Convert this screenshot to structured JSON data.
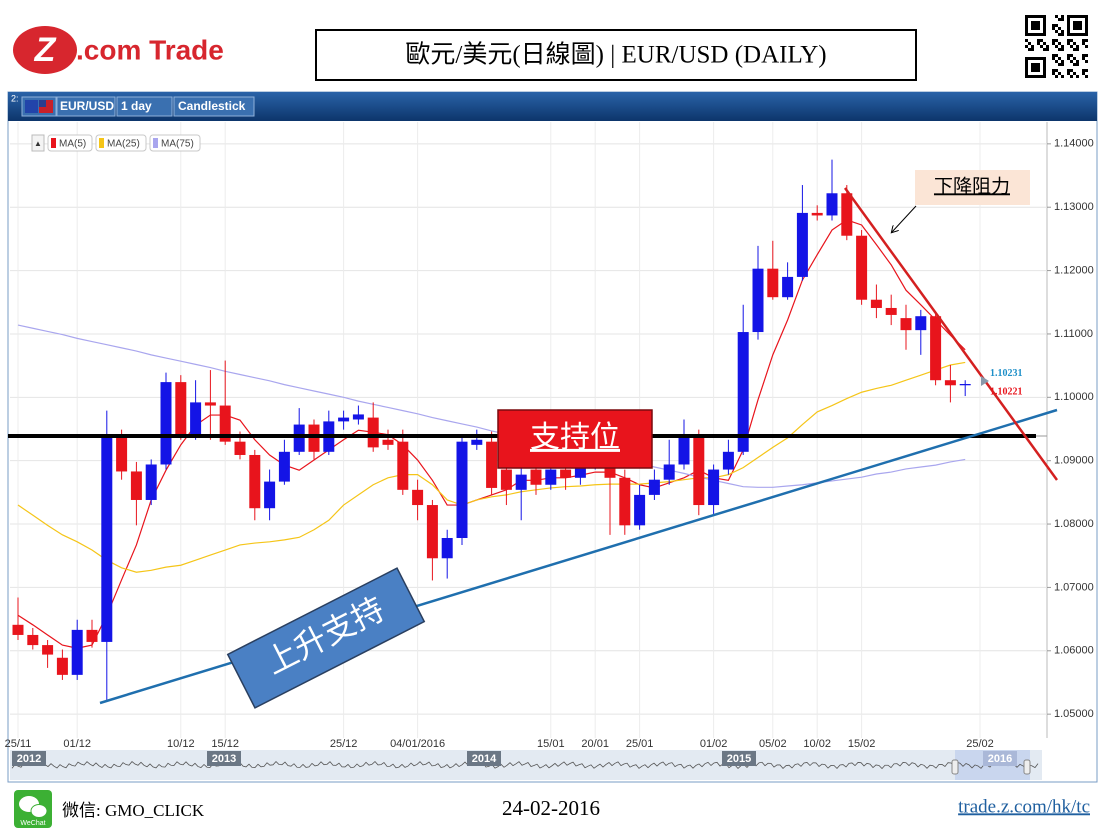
{
  "header": {
    "logo_mark": "Z",
    "logo_text": ".com Trade",
    "title": "歐元/美元(日線圖) | EUR/USD (DAILY)"
  },
  "toolbar": {
    "panel": "2:",
    "symbol": "EUR/USD",
    "interval": "1 day",
    "chart_style": "Candlestick",
    "legend_toggle": "▲"
  },
  "chart_data": {
    "type": "candlestick",
    "categories": [
      "25/11",
      null,
      null,
      null,
      "01/12",
      null,
      null,
      null,
      null,
      null,
      null,
      "10/12",
      null,
      null,
      "15/12",
      null,
      null,
      null,
      null,
      null,
      null,
      null,
      "25/12",
      null,
      null,
      null,
      null,
      "04/01/2016",
      null,
      null,
      null,
      null,
      null,
      null,
      null,
      null,
      "15/01",
      null,
      null,
      "20/01",
      null,
      null,
      "25/01",
      null,
      null,
      null,
      null,
      "01/02",
      null,
      null,
      null,
      "05/02",
      null,
      null,
      "10/02",
      null,
      null,
      "15/02",
      null,
      null,
      null,
      null,
      null,
      null,
      null,
      "25/02",
      null,
      null,
      null,
      null
    ],
    "ohlc": {
      "open": [
        1.0641,
        1.0625,
        1.0609,
        1.0589,
        1.0562,
        1.0633,
        1.0614,
        1.0938,
        1.0883,
        1.0838,
        1.0894,
        1.1024,
        1.0941,
        1.0992,
        1.0987,
        1.093,
        1.0909,
        1.0825,
        1.0867,
        1.0914,
        1.0957,
        1.0914,
        1.0962,
        1.0965,
        1.0968,
        1.0933,
        1.093,
        1.0854,
        1.083,
        1.0746,
        1.0778,
        1.0925,
        1.093,
        1.0886,
        1.0854,
        1.0886,
        1.0862,
        1.0886,
        1.0873,
        1.0894,
        1.0902,
        1.0873,
        1.0798,
        1.0846,
        1.087,
        1.0894,
        1.0936,
        1.083,
        1.0886,
        1.0914,
        1.1103,
        1.1203,
        1.1158,
        1.119,
        1.1291,
        1.1287,
        1.1322,
        1.1255,
        1.1154,
        1.1141,
        1.1125,
        1.1106,
        1.1128,
        1.1027,
        1.1019,
        null,
        null,
        null,
        null,
        null
      ],
      "high": [
        1.0684,
        1.0636,
        1.0617,
        1.0602,
        1.0649,
        1.0649,
        1.0979,
        1.0949,
        1.0898,
        1.0902,
        1.1039,
        1.1035,
        1.1027,
        1.1043,
        1.1058,
        1.0946,
        1.0917,
        1.0886,
        1.0933,
        1.0983,
        1.0965,
        1.0979,
        1.0979,
        1.0987,
        1.0992,
        1.0949,
        1.0949,
        1.087,
        1.0838,
        1.0791,
        1.0936,
        1.0949,
        1.0946,
        1.0902,
        1.0894,
        1.0902,
        1.0909,
        1.0902,
        1.0909,
        1.0925,
        1.0909,
        1.0886,
        1.0862,
        1.0886,
        1.0933,
        1.0965,
        1.0949,
        1.0894,
        1.0933,
        1.1146,
        1.1239,
        1.1247,
        1.1213,
        1.1335,
        1.1303,
        1.1375,
        1.1335,
        1.1264,
        1.1178,
        1.1162,
        1.1146,
        1.1138,
        1.1134,
        1.1051,
        1.1027,
        null,
        null,
        null,
        null,
        null
      ],
      "low": [
        1.0617,
        1.0602,
        1.0573,
        1.0554,
        1.0554,
        1.0605,
        1.0522,
        1.087,
        1.0798,
        1.083,
        1.0886,
        1.0933,
        1.0933,
        1.0933,
        1.0925,
        1.0902,
        1.0806,
        1.0806,
        1.0862,
        1.0909,
        1.0902,
        1.0909,
        1.0949,
        1.0957,
        1.0914,
        1.0917,
        1.0846,
        1.0806,
        1.0711,
        1.0714,
        1.0767,
        1.0917,
        1.0846,
        1.083,
        1.0806,
        1.0846,
        1.0854,
        1.0854,
        1.0862,
        1.0886,
        1.0783,
        1.0783,
        1.0791,
        1.0838,
        1.0862,
        1.0886,
        1.0814,
        1.0814,
        1.0878,
        1.0909,
        1.1091,
        1.1154,
        1.1154,
        1.1184,
        1.1279,
        1.1279,
        1.1248,
        1.1146,
        1.1125,
        1.1114,
        1.1075,
        1.1067,
        1.1019,
        1.0992,
        1.1002,
        null,
        null,
        null,
        null,
        null
      ],
      "close": [
        1.0625,
        1.0609,
        1.0594,
        1.0562,
        1.0633,
        1.0614,
        1.0938,
        1.0883,
        1.0838,
        1.0894,
        1.1024,
        1.0941,
        1.0992,
        1.0987,
        1.093,
        1.0909,
        1.0825,
        1.0867,
        1.0914,
        1.0957,
        1.0914,
        1.0962,
        1.0968,
        1.0973,
        1.0921,
        1.0925,
        1.0854,
        1.083,
        1.0746,
        1.0778,
        1.093,
        1.0933,
        1.0857,
        1.0854,
        1.0878,
        1.0862,
        1.0886,
        1.0873,
        1.0894,
        1.0909,
        1.0873,
        1.0798,
        1.0846,
        1.087,
        1.0894,
        1.0936,
        1.083,
        1.0886,
        1.0914,
        1.1103,
        1.1203,
        1.1158,
        1.119,
        1.1291,
        1.1287,
        1.1322,
        1.1255,
        1.1154,
        1.1141,
        1.113,
        1.1106,
        1.1128,
        1.1027,
        1.1019,
        1.1021,
        null,
        null,
        null,
        null,
        null
      ]
    },
    "up_color": "#1414e6",
    "down_color": "#e8141c",
    "series": [
      {
        "name": "MA(5)",
        "color": "#e8141c",
        "values": [
          1.0656,
          1.0641,
          1.0625,
          1.0609,
          1.0604,
          1.0609,
          1.0656,
          1.0712,
          1.0767,
          1.0838,
          1.0885,
          1.0925,
          1.0956,
          1.0972,
          1.0972,
          1.0964,
          1.0933,
          1.0909,
          1.0893,
          1.0885,
          1.0901,
          1.0917,
          1.0933,
          1.0948,
          1.0945,
          1.0941,
          1.0925,
          1.0901,
          1.0869,
          1.083,
          1.083,
          1.0838,
          1.0846,
          1.0854,
          1.0869,
          1.0869,
          1.0873,
          1.0873,
          1.0877,
          1.0882,
          1.0882,
          1.0873,
          1.0862,
          1.0857,
          1.0865,
          1.0873,
          1.0885,
          1.0873,
          1.0869,
          1.0917,
          1.0996,
          1.1067,
          1.1122,
          1.1185,
          1.1225,
          1.1264,
          1.128,
          1.1272,
          1.1241,
          1.1209,
          1.1169,
          1.1146,
          1.1122,
          1.1098,
          1.1075,
          null,
          null,
          null,
          null,
          null
        ]
      },
      {
        "name": "MA(25)",
        "color": "#f5c518",
        "values": [
          1.083,
          1.0814,
          1.0798,
          1.0783,
          1.0772,
          1.0759,
          1.0743,
          1.0731,
          1.0724,
          1.0727,
          1.0732,
          1.0735,
          1.0743,
          1.0751,
          1.0759,
          1.0767,
          1.077,
          1.0772,
          1.0775,
          1.0779,
          1.0791,
          1.0806,
          1.083,
          1.0846,
          1.0862,
          1.0873,
          1.0878,
          1.0878,
          1.0862,
          1.0838,
          1.083,
          1.0838,
          1.0843,
          1.0846,
          1.0851,
          1.0854,
          1.0857,
          1.0859,
          1.086,
          1.0862,
          1.0863,
          1.0863,
          1.0863,
          1.0865,
          1.0867,
          1.087,
          1.0873,
          1.0873,
          1.0878,
          1.0889,
          1.0905,
          1.0921,
          1.0936,
          1.0957,
          1.0977,
          1.0987,
          1.0998,
          1.1008,
          1.1014,
          1.1019,
          1.1027,
          1.1035,
          1.1043,
          1.1051,
          1.1055,
          null,
          null,
          null,
          null,
          null
        ]
      },
      {
        "name": "MA(75)",
        "color": "#a9a6ee",
        "values": [
          1.1114,
          1.1109,
          1.1104,
          1.1099,
          1.1093,
          1.1088,
          1.1083,
          1.1078,
          1.1073,
          1.1067,
          1.1062,
          1.1057,
          1.1052,
          1.1047,
          1.1041,
          1.1036,
          1.1031,
          1.1026,
          1.102,
          1.1015,
          1.101,
          1.1005,
          1.1,
          1.0994,
          1.0989,
          1.0984,
          1.0979,
          1.0974,
          1.0968,
          1.0963,
          1.0958,
          1.0953,
          1.0947,
          1.0942,
          1.0937,
          1.0932,
          1.0927,
          1.0921,
          1.0916,
          1.0911,
          1.0906,
          1.0901,
          1.0895,
          1.089,
          1.0885,
          1.088,
          1.0874,
          1.0869,
          1.0864,
          1.0859,
          1.0858,
          1.0858,
          1.086,
          1.0862,
          1.0865,
          1.0868,
          1.0871,
          1.0874,
          1.0879,
          1.0882,
          1.0887,
          1.089,
          1.0893,
          1.0898,
          1.0902,
          null,
          null,
          null,
          null,
          null
        ]
      }
    ],
    "ylim": [
      1.0475,
      1.1425
    ],
    "yticks": [
      {
        "value": 1.05,
        "label": "1.05000"
      },
      {
        "value": 1.06,
        "label": "1.06000"
      },
      {
        "value": 1.07,
        "label": "1.07000"
      },
      {
        "value": 1.08,
        "label": "1.08000"
      },
      {
        "value": 1.09,
        "label": "1.09000"
      },
      {
        "value": 1.1,
        "label": "1.10000"
      },
      {
        "value": 1.11,
        "label": "1.11000"
      },
      {
        "value": 1.12,
        "label": "1.12000"
      },
      {
        "value": 1.13,
        "label": "1.13000"
      },
      {
        "value": 1.14,
        "label": "1.14000"
      }
    ],
    "grid": true,
    "price_labels": [
      {
        "value": 1.10231,
        "color": "#1e8fc8"
      },
      {
        "value": 1.10221,
        "color": "#e8141c"
      }
    ],
    "annotations": {
      "resistance": "下降阻力",
      "support": "支持位",
      "rising_support": "上升支持"
    },
    "navigator_years": [
      "2012",
      "2013",
      "2014",
      "2015",
      "2016"
    ]
  },
  "footer": {
    "wechat_icon": "WeChat",
    "wechat": "微信: GMO_CLICK",
    "date": "24-02-2016",
    "link": "trade.z.com/hk/tc"
  }
}
